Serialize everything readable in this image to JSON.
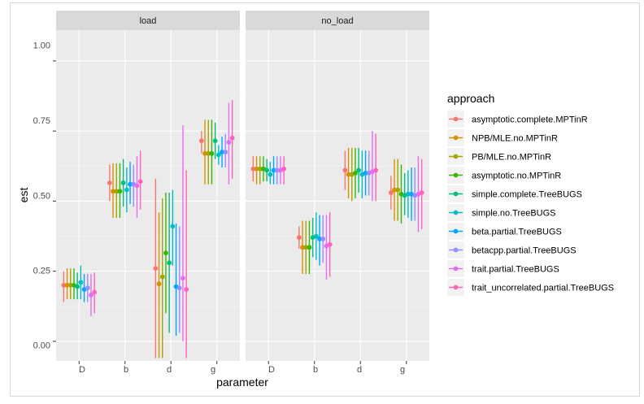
{
  "chart_data": {
    "type": "pointrange",
    "xlabel": "parameter",
    "ylabel": "est",
    "ylim": [
      -0.07,
      1.11
    ],
    "y_ticks": [
      "0.00",
      "0.25",
      "0.50",
      "0.75",
      "1.00"
    ],
    "y_tick_values": [
      0,
      0.25,
      0.5,
      0.75,
      1.0
    ],
    "categories": [
      "D",
      "b",
      "d",
      "g"
    ],
    "facets": [
      "load",
      "no_load"
    ],
    "legend_title": "approach",
    "series": [
      {
        "name": "asymptotic.complete.MPTinR",
        "color": "#F8766D",
        "load": [
          [
            0.2,
            0.14,
            0.25
          ],
          [
            0.565,
            0.5,
            0.63
          ],
          [
            0.26,
            -0.06,
            0.58
          ],
          [
            0.715,
            0.67,
            0.75
          ]
        ],
        "no_load": [
          [
            0.615,
            0.57,
            0.66
          ],
          [
            0.37,
            0.33,
            0.41
          ],
          [
            0.61,
            0.54,
            0.68
          ],
          [
            0.53,
            0.47,
            0.59
          ]
        ]
      },
      {
        "name": "NPB/MLE.no.MPTinR",
        "color": "#D89000",
        "load": [
          [
            0.2,
            0.15,
            0.26
          ],
          [
            0.535,
            0.44,
            0.635
          ],
          [
            0.205,
            -0.06,
            0.46
          ],
          [
            0.67,
            0.56,
            0.79
          ]
        ],
        "no_load": [
          [
            0.615,
            0.56,
            0.66
          ],
          [
            0.335,
            0.24,
            0.43
          ],
          [
            0.595,
            0.51,
            0.69
          ],
          [
            0.54,
            0.43,
            0.65
          ]
        ]
      },
      {
        "name": "PB/MLE.no.MPTinR",
        "color": "#A3A500",
        "load": [
          [
            0.2,
            0.15,
            0.26
          ],
          [
            0.535,
            0.44,
            0.635
          ],
          [
            0.23,
            -0.06,
            0.51
          ],
          [
            0.67,
            0.56,
            0.79
          ]
        ],
        "no_load": [
          [
            0.615,
            0.56,
            0.66
          ],
          [
            0.335,
            0.24,
            0.43
          ],
          [
            0.595,
            0.5,
            0.69
          ],
          [
            0.54,
            0.43,
            0.65
          ]
        ]
      },
      {
        "name": "asymptotic.no.MPTinR",
        "color": "#39B600",
        "load": [
          [
            0.2,
            0.15,
            0.26
          ],
          [
            0.535,
            0.44,
            0.635
          ],
          [
            0.315,
            0.1,
            0.53
          ],
          [
            0.67,
            0.56,
            0.79
          ]
        ],
        "no_load": [
          [
            0.615,
            0.57,
            0.66
          ],
          [
            0.335,
            0.24,
            0.43
          ],
          [
            0.6,
            0.51,
            0.69
          ],
          [
            0.525,
            0.42,
            0.63
          ]
        ]
      },
      {
        "name": "simple.complete.TreeBUGS",
        "color": "#00BF7D",
        "load": [
          [
            0.195,
            0.15,
            0.245
          ],
          [
            0.565,
            0.48,
            0.65
          ],
          [
            0.28,
            0.03,
            0.53
          ],
          [
            0.715,
            0.65,
            0.78
          ]
        ],
        "no_load": [
          [
            0.61,
            0.57,
            0.65
          ],
          [
            0.37,
            0.3,
            0.44
          ],
          [
            0.61,
            0.53,
            0.69
          ],
          [
            0.52,
            0.45,
            0.6
          ]
        ]
      },
      {
        "name": "simple.no.TreeBUGS",
        "color": "#00BFC4",
        "load": [
          [
            0.21,
            0.15,
            0.27
          ],
          [
            0.54,
            0.46,
            0.62
          ],
          [
            0.41,
            0.27,
            0.54
          ],
          [
            0.665,
            0.63,
            0.7
          ]
        ],
        "no_load": [
          [
            0.595,
            0.56,
            0.64
          ],
          [
            0.375,
            0.29,
            0.46
          ],
          [
            0.595,
            0.51,
            0.68
          ],
          [
            0.525,
            0.44,
            0.61
          ]
        ]
      },
      {
        "name": "beta.partial.TreeBUGS",
        "color": "#00A5FF",
        "load": [
          [
            0.185,
            0.14,
            0.24
          ],
          [
            0.56,
            0.49,
            0.64
          ],
          [
            0.195,
            0.02,
            0.42
          ],
          [
            0.675,
            0.62,
            0.73
          ]
        ],
        "no_load": [
          [
            0.61,
            0.56,
            0.66
          ],
          [
            0.365,
            0.27,
            0.45
          ],
          [
            0.6,
            0.52,
            0.68
          ],
          [
            0.525,
            0.43,
            0.62
          ]
        ]
      },
      {
        "name": "betacpp.partial.TreeBUGS",
        "color": "#9590FF",
        "load": [
          [
            0.19,
            0.14,
            0.24
          ],
          [
            0.56,
            0.48,
            0.63
          ],
          [
            0.19,
            0.03,
            0.41
          ],
          [
            0.675,
            0.62,
            0.74
          ]
        ],
        "no_load": [
          [
            0.61,
            0.56,
            0.66
          ],
          [
            0.365,
            0.28,
            0.45
          ],
          [
            0.6,
            0.52,
            0.68
          ],
          [
            0.52,
            0.43,
            0.62
          ]
        ]
      },
      {
        "name": "trait.partial.TreeBUGS",
        "color": "#E76BF3",
        "load": [
          [
            0.165,
            0.09,
            0.24
          ],
          [
            0.555,
            0.44,
            0.66
          ],
          [
            0.225,
            0.0,
            0.77
          ],
          [
            0.71,
            0.56,
            0.85
          ]
        ],
        "no_load": [
          [
            0.61,
            0.56,
            0.66
          ],
          [
            0.34,
            0.22,
            0.45
          ],
          [
            0.605,
            0.5,
            0.75
          ],
          [
            0.525,
            0.39,
            0.66
          ]
        ]
      },
      {
        "name": "trait_uncorrelated.partial.TreeBUGS",
        "color": "#FF62BC",
        "load": [
          [
            0.175,
            0.1,
            0.245
          ],
          [
            0.57,
            0.47,
            0.68
          ],
          [
            0.185,
            -0.06,
            0.61
          ],
          [
            0.725,
            0.58,
            0.86
          ]
        ],
        "no_load": [
          [
            0.615,
            0.56,
            0.66
          ],
          [
            0.345,
            0.23,
            0.46
          ],
          [
            0.61,
            0.5,
            0.74
          ],
          [
            0.53,
            0.4,
            0.65
          ]
        ]
      }
    ]
  }
}
